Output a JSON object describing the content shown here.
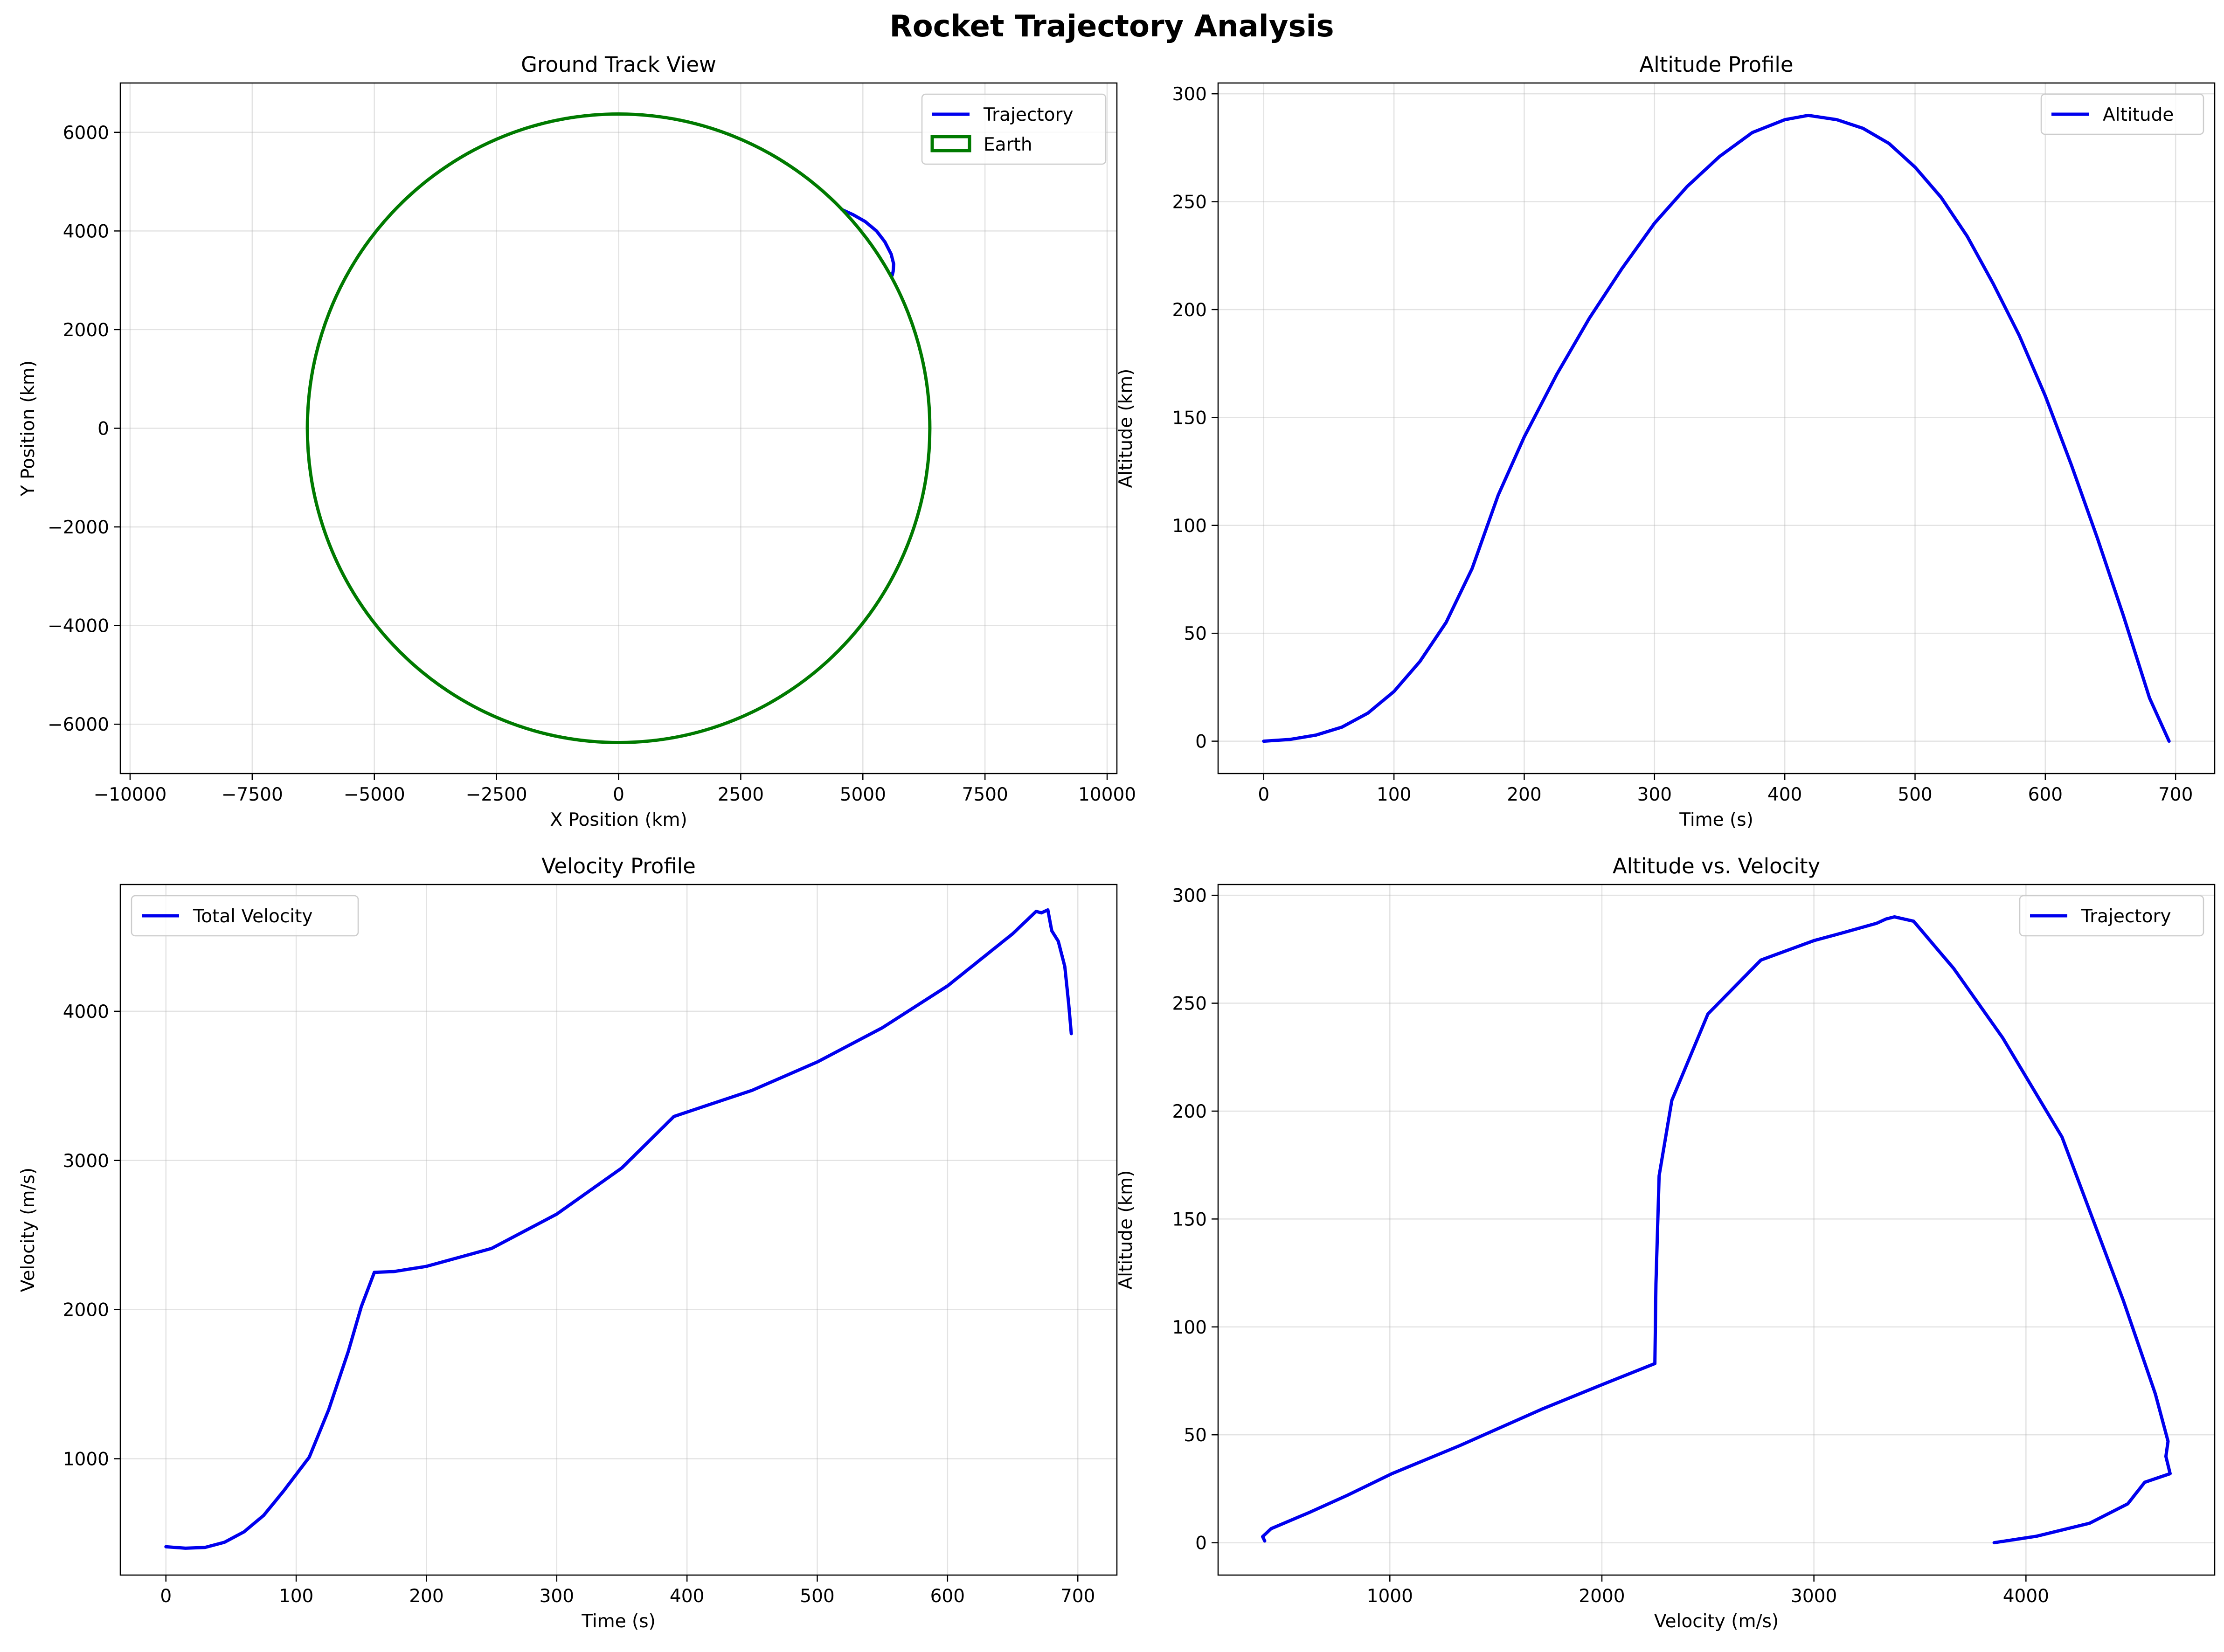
{
  "figure": {
    "suptitle": "Rocket Trajectory Analysis"
  },
  "colors": {
    "trajectory": "#0000ee",
    "earth": "#007a00"
  },
  "chart_data": [
    {
      "id": "ground",
      "type": "line",
      "title": "Ground Track View",
      "xlabel": "X Position (km)",
      "ylabel": "Y Position (km)",
      "xlim": [
        -10200,
        10200
      ],
      "ylim": [
        -7000,
        7000
      ],
      "xticks": [
        -10000,
        -7500,
        -5000,
        -2500,
        0,
        2500,
        5000,
        7500,
        10000
      ],
      "xtick_labels": [
        "−10000",
        "−7500",
        "−5000",
        "−2500",
        "0",
        "2500",
        "5000",
        "7500",
        "10000"
      ],
      "yticks": [
        -6000,
        -4000,
        -2000,
        0,
        2000,
        4000,
        6000
      ],
      "ytick_labels": [
        "−6000",
        "−4000",
        "−2000",
        "0",
        "2000",
        "4000",
        "6000"
      ],
      "grid": true,
      "legend": "top-right",
      "series": [
        {
          "name": "Trajectory",
          "style": "line",
          "x": [
            4573,
            4800,
            5050,
            5280,
            5450,
            5580,
            5630,
            5620,
            5600
          ],
          "y": [
            4433,
            4330,
            4190,
            4000,
            3780,
            3530,
            3330,
            3180,
            3100
          ]
        },
        {
          "name": "Earth",
          "style": "circle",
          "radius": 6371,
          "center": [
            0,
            0
          ]
        }
      ]
    },
    {
      "id": "altitude",
      "type": "line",
      "title": "Altitude Profile",
      "xlabel": "Time (s)",
      "ylabel": "Altitude (km)",
      "xlim": [
        -35,
        730
      ],
      "ylim": [
        -15,
        305
      ],
      "xticks": [
        0,
        100,
        200,
        300,
        400,
        500,
        600,
        700
      ],
      "xtick_labels": [
        "0",
        "100",
        "200",
        "300",
        "400",
        "500",
        "600",
        "700"
      ],
      "yticks": [
        0,
        50,
        100,
        150,
        200,
        250,
        300
      ],
      "ytick_labels": [
        "0",
        "50",
        "100",
        "150",
        "200",
        "250",
        "300"
      ],
      "grid": true,
      "legend": "top-right",
      "series": [
        {
          "name": "Altitude",
          "x": [
            0,
            20,
            40,
            60,
            80,
            100,
            120,
            140,
            160,
            180,
            200,
            225,
            250,
            275,
            300,
            325,
            350,
            375,
            400,
            418,
            440,
            460,
            480,
            500,
            520,
            540,
            560,
            580,
            600,
            620,
            640,
            660,
            680,
            695
          ],
          "y": [
            0,
            0.8,
            2.8,
            6.5,
            13,
            23,
            37,
            55,
            80,
            114,
            141,
            170,
            196,
            219,
            240,
            257,
            271,
            282,
            288,
            290,
            288,
            284,
            277,
            266,
            252,
            234,
            212,
            188,
            160,
            128,
            94,
            58,
            20,
            0
          ]
        }
      ]
    },
    {
      "id": "velocity",
      "type": "line",
      "title": "Velocity Profile",
      "xlabel": "Time (s)",
      "ylabel": "Velocity (m/s)",
      "xlim": [
        -35,
        730
      ],
      "ylim": [
        220,
        4850
      ],
      "xticks": [
        0,
        100,
        200,
        300,
        400,
        500,
        600,
        700
      ],
      "xtick_labels": [
        "0",
        "100",
        "200",
        "300",
        "400",
        "500",
        "600",
        "700"
      ],
      "yticks": [
        1000,
        2000,
        3000,
        4000
      ],
      "ytick_labels": [
        "1000",
        "2000",
        "3000",
        "4000"
      ],
      "grid": true,
      "legend": "top-left",
      "series": [
        {
          "name": "Total Velocity",
          "x": [
            0,
            15,
            30,
            45,
            60,
            75,
            90,
            110,
            125,
            140,
            150,
            160,
            175,
            200,
            250,
            300,
            350,
            390,
            450,
            500,
            550,
            600,
            650,
            668,
            672,
            677,
            680,
            685,
            690,
            693,
            695
          ],
          "y": [
            410,
            400,
            405,
            440,
            510,
            620,
            780,
            1010,
            1330,
            1720,
            2020,
            2250,
            2255,
            2290,
            2410,
            2640,
            2950,
            3295,
            3470,
            3660,
            3890,
            4170,
            4520,
            4670,
            4660,
            4680,
            4540,
            4470,
            4300,
            4050,
            3850
          ]
        }
      ]
    },
    {
      "id": "altvel",
      "type": "line",
      "title": "Altitude vs. Velocity",
      "xlabel": "Velocity (m/s)",
      "ylabel": "Altitude (km)",
      "xlim": [
        190,
        4890
      ],
      "ylim": [
        -15,
        305
      ],
      "xticks": [
        1000,
        2000,
        3000,
        4000
      ],
      "xtick_labels": [
        "1000",
        "2000",
        "3000",
        "4000"
      ],
      "yticks": [
        0,
        50,
        100,
        150,
        200,
        250,
        300
      ],
      "ytick_labels": [
        "0",
        "50",
        "100",
        "150",
        "200",
        "250",
        "300"
      ],
      "grid": true,
      "legend": "top-right",
      "series": [
        {
          "name": "Trajectory",
          "x": [
            410,
            400,
            440,
            620,
            800,
            1010,
            1330,
            1720,
            2020,
            2250,
            2255,
            2270,
            2330,
            2500,
            2750,
            3000,
            3150,
            3295,
            3340,
            3380,
            3470,
            3660,
            3890,
            4170,
            4460,
            4610,
            4670,
            4660,
            4680,
            4560,
            4480,
            4300,
            4050,
            3850
          ],
          "y": [
            0.8,
            2.8,
            6.5,
            14,
            22,
            32,
            45,
            62,
            74,
            83,
            120,
            170,
            205,
            245,
            270,
            279,
            283,
            287,
            289,
            290,
            288,
            266,
            234,
            188,
            112,
            69,
            47,
            40,
            32,
            28,
            18,
            9,
            3,
            0
          ]
        }
      ]
    }
  ]
}
